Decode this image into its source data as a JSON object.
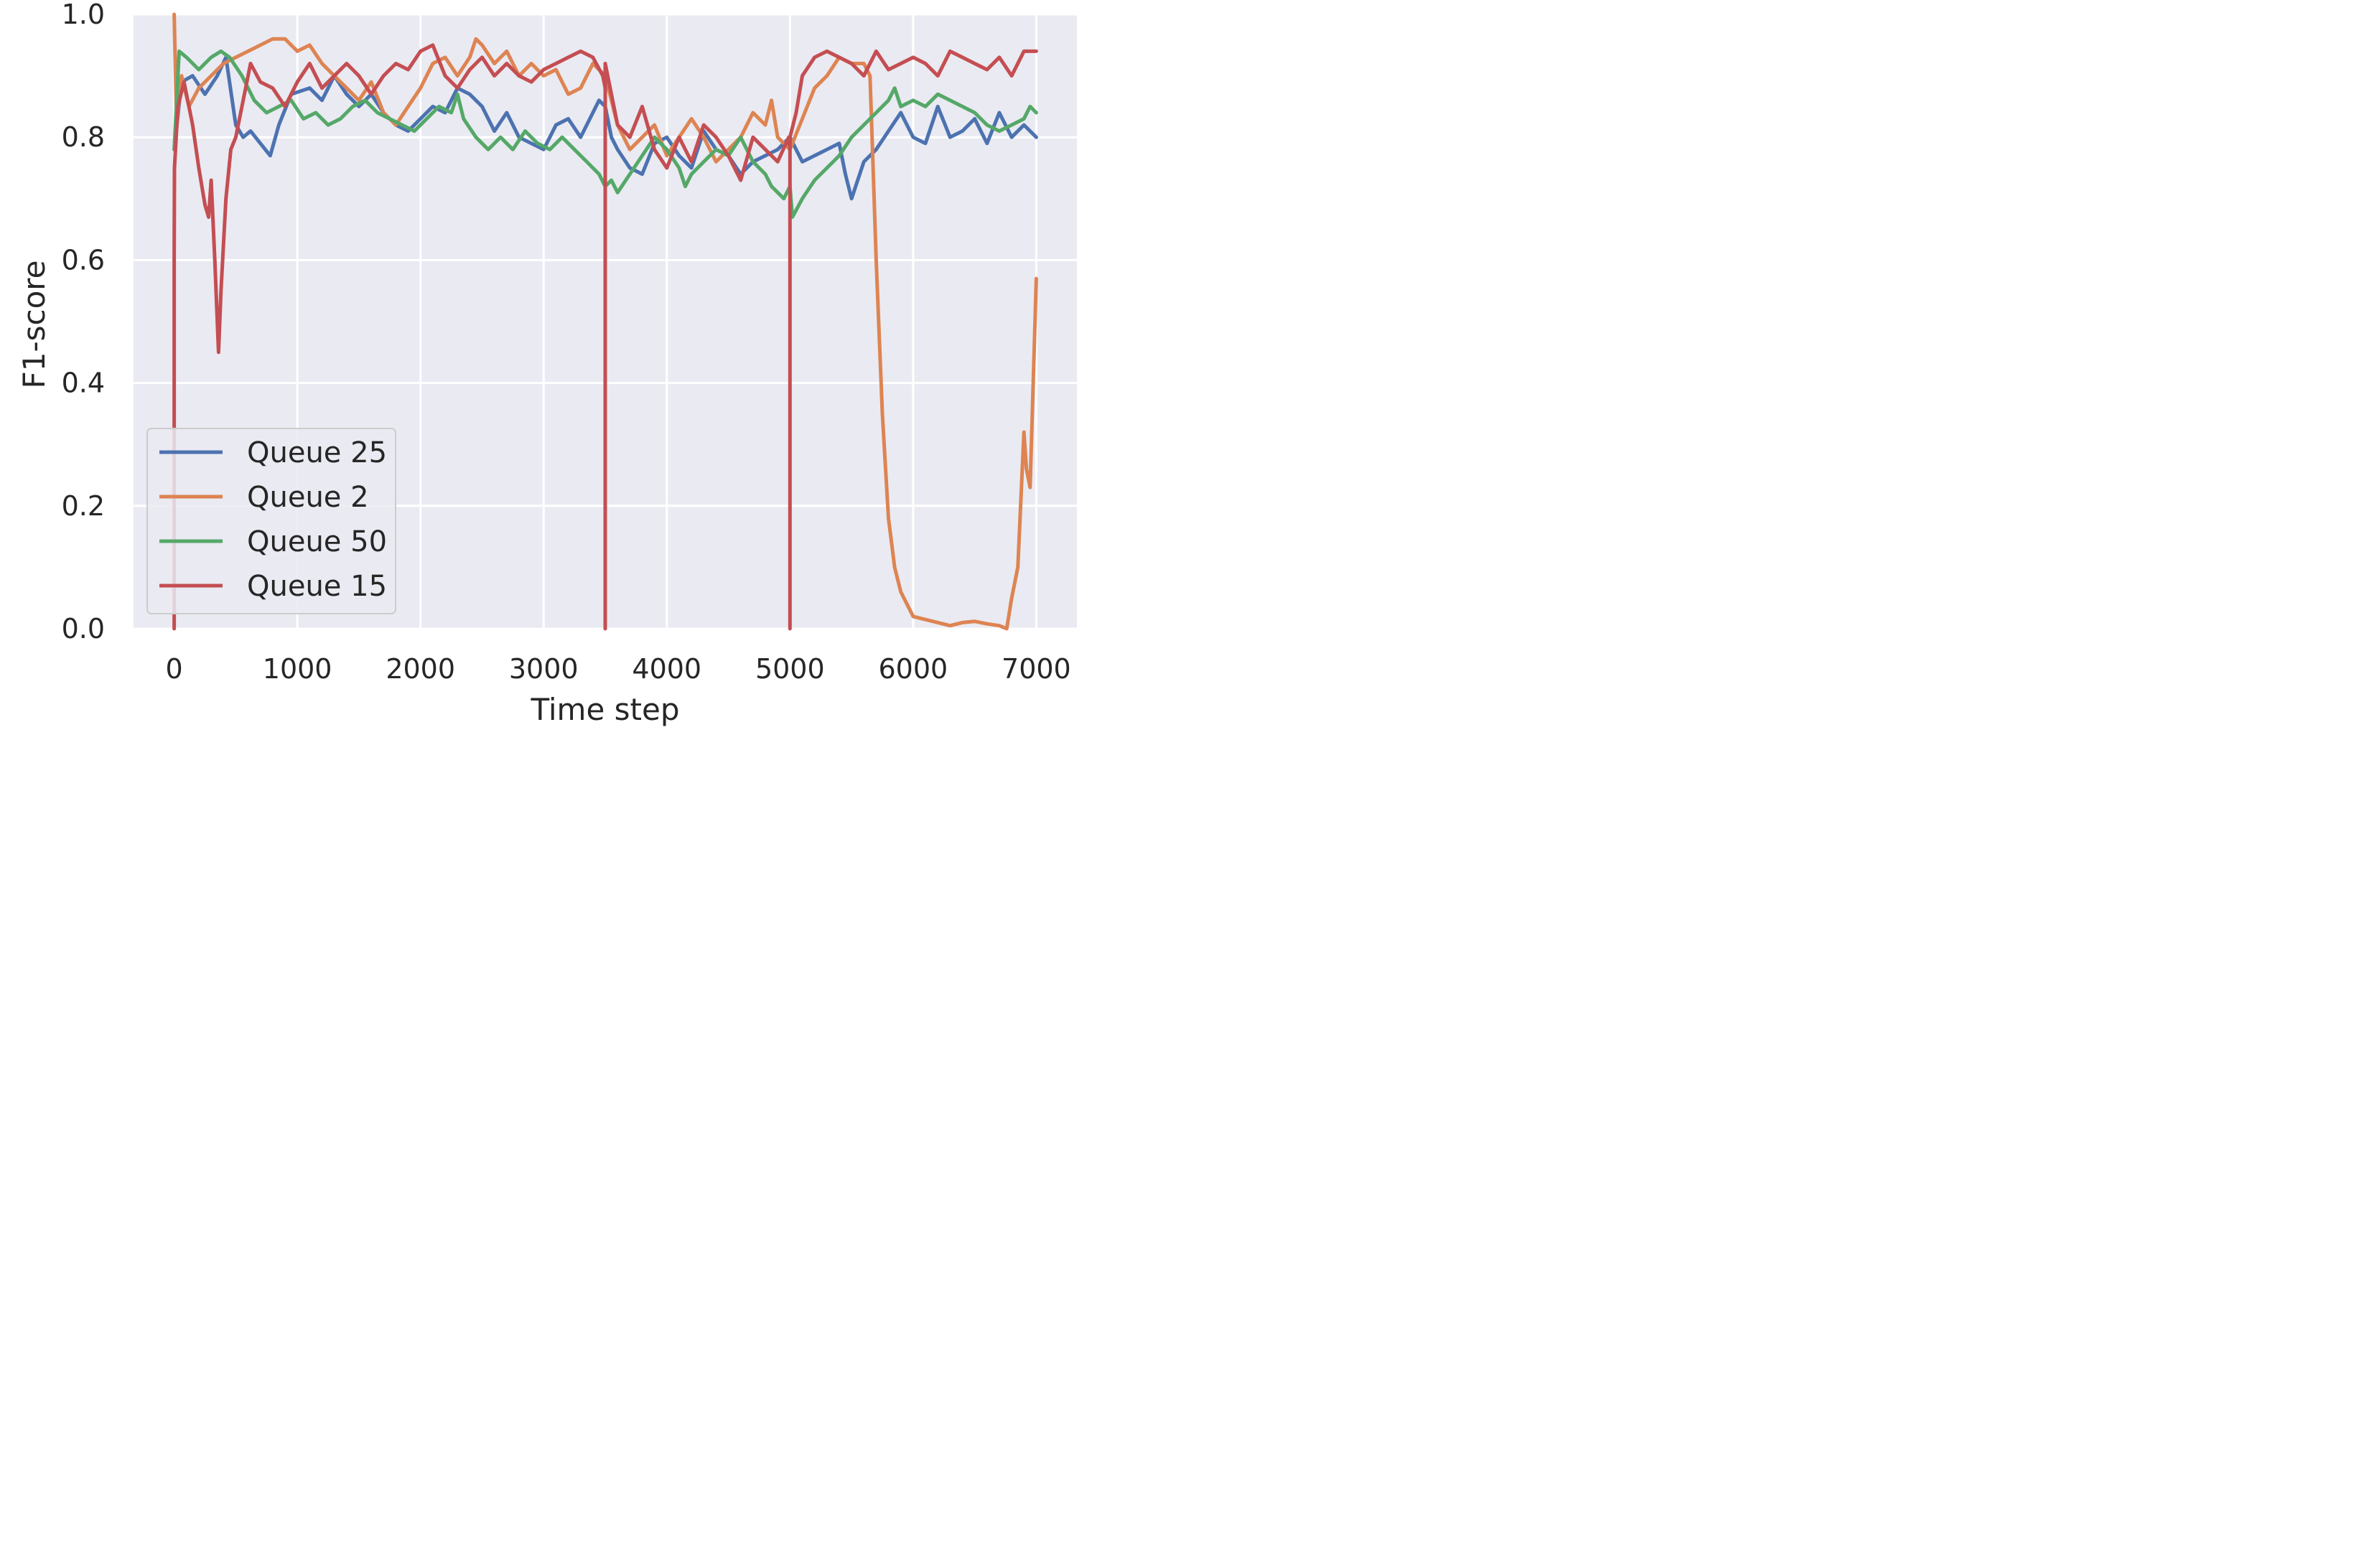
{
  "chart_data": {
    "type": "line",
    "title": "",
    "xlabel": "Time step",
    "ylabel": "F1-score",
    "xlim": [
      -330,
      7330
    ],
    "ylim": [
      0,
      1.0
    ],
    "xticks": [
      0,
      1000,
      2000,
      3000,
      4000,
      5000,
      6000,
      7000
    ],
    "xtick_labels": [
      "0",
      "1000",
      "2000",
      "3000",
      "4000",
      "5000",
      "6000",
      "7000"
    ],
    "yticks": [
      0,
      0.2,
      0.4,
      0.6,
      0.8,
      1.0
    ],
    "ytick_labels": [
      "0.0",
      "0.2",
      "0.4",
      "0.6",
      "0.8",
      "1.0"
    ],
    "grid": true,
    "background": "#eaeaf2",
    "legend_position": "lower-left",
    "series": [
      {
        "name": "Queue 25",
        "color": "#4c72b0",
        "x": [
          0,
          60,
          150,
          250,
          350,
          420,
          500,
          560,
          620,
          700,
          780,
          850,
          950,
          1100,
          1200,
          1300,
          1400,
          1500,
          1600,
          1700,
          1800,
          1900,
          2000,
          2100,
          2200,
          2300,
          2400,
          2500,
          2600,
          2700,
          2800,
          2900,
          3000,
          3100,
          3200,
          3300,
          3400,
          3450,
          3500,
          3550,
          3600,
          3700,
          3800,
          3900,
          4000,
          4100,
          4200,
          4300,
          4400,
          4500,
          4600,
          4700,
          4800,
          4900,
          5000,
          5100,
          5200,
          5300,
          5400,
          5450,
          5500,
          5600,
          5700,
          5800,
          5900,
          6000,
          6100,
          6200,
          6300,
          6400,
          6500,
          6600,
          6700,
          6800,
          6900,
          7000
        ],
        "y": [
          0.78,
          0.89,
          0.9,
          0.87,
          0.9,
          0.93,
          0.82,
          0.8,
          0.81,
          0.79,
          0.77,
          0.82,
          0.87,
          0.88,
          0.86,
          0.9,
          0.87,
          0.85,
          0.87,
          0.84,
          0.82,
          0.81,
          0.83,
          0.85,
          0.84,
          0.88,
          0.87,
          0.85,
          0.81,
          0.84,
          0.8,
          0.79,
          0.78,
          0.82,
          0.83,
          0.8,
          0.84,
          0.86,
          0.85,
          0.8,
          0.78,
          0.75,
          0.74,
          0.79,
          0.8,
          0.77,
          0.75,
          0.81,
          0.78,
          0.77,
          0.74,
          0.76,
          0.77,
          0.78,
          0.8,
          0.76,
          0.77,
          0.78,
          0.79,
          0.74,
          0.7,
          0.76,
          0.78,
          0.81,
          0.84,
          0.8,
          0.79,
          0.85,
          0.8,
          0.81,
          0.83,
          0.79,
          0.84,
          0.8,
          0.82,
          0.8
        ]
      },
      {
        "name": "Queue 2",
        "color": "#dd8452",
        "x": [
          0,
          20,
          60,
          120,
          200,
          300,
          400,
          500,
          600,
          700,
          800,
          900,
          1000,
          1100,
          1200,
          1300,
          1400,
          1500,
          1600,
          1700,
          1800,
          1900,
          2000,
          2100,
          2200,
          2300,
          2400,
          2450,
          2500,
          2600,
          2700,
          2800,
          2900,
          3000,
          3100,
          3200,
          3300,
          3400,
          3500,
          3550,
          3600,
          3700,
          3800,
          3900,
          4000,
          4100,
          4200,
          4300,
          4400,
          4500,
          4600,
          4700,
          4800,
          4850,
          4900,
          5000,
          5100,
          5200,
          5300,
          5400,
          5500,
          5600,
          5650,
          5700,
          5750,
          5800,
          5850,
          5900,
          5950,
          6000,
          6100,
          6200,
          6300,
          6400,
          6500,
          6600,
          6700,
          6760,
          6800,
          6850,
          6900,
          6920,
          6950,
          7000
        ],
        "y": [
          1.0,
          0.82,
          0.9,
          0.85,
          0.88,
          0.9,
          0.92,
          0.93,
          0.94,
          0.95,
          0.96,
          0.96,
          0.94,
          0.95,
          0.92,
          0.9,
          0.88,
          0.86,
          0.89,
          0.84,
          0.82,
          0.85,
          0.88,
          0.92,
          0.93,
          0.9,
          0.93,
          0.96,
          0.95,
          0.92,
          0.94,
          0.9,
          0.92,
          0.9,
          0.91,
          0.87,
          0.88,
          0.92,
          0.9,
          0.86,
          0.82,
          0.78,
          0.8,
          0.82,
          0.77,
          0.8,
          0.83,
          0.8,
          0.76,
          0.78,
          0.8,
          0.84,
          0.82,
          0.86,
          0.8,
          0.78,
          0.83,
          0.88,
          0.9,
          0.93,
          0.92,
          0.92,
          0.9,
          0.6,
          0.35,
          0.18,
          0.1,
          0.06,
          0.04,
          0.02,
          0.015,
          0.01,
          0.005,
          0.01,
          0.012,
          0.008,
          0.005,
          0.0,
          0.05,
          0.1,
          0.32,
          0.26,
          0.23,
          0.57
        ]
      },
      {
        "name": "Queue 50",
        "color": "#55a868",
        "x": [
          0,
          40,
          100,
          200,
          300,
          380,
          450,
          550,
          650,
          750,
          850,
          950,
          1050,
          1150,
          1250,
          1350,
          1450,
          1550,
          1650,
          1750,
          1850,
          1950,
          2050,
          2150,
          2250,
          2300,
          2350,
          2450,
          2550,
          2650,
          2750,
          2850,
          2950,
          3050,
          3150,
          3250,
          3350,
          3450,
          3500,
          3550,
          3600,
          3700,
          3800,
          3900,
          4000,
          4100,
          4150,
          4200,
          4300,
          4400,
          4500,
          4600,
          4700,
          4800,
          4850,
          4900,
          4950,
          5000,
          5020,
          5100,
          5200,
          5300,
          5400,
          5500,
          5600,
          5700,
          5800,
          5850,
          5900,
          6000,
          6100,
          6200,
          6300,
          6400,
          6500,
          6600,
          6700,
          6800,
          6900,
          6950,
          7000
        ],
        "y": [
          0.78,
          0.94,
          0.93,
          0.91,
          0.93,
          0.94,
          0.93,
          0.9,
          0.86,
          0.84,
          0.85,
          0.86,
          0.83,
          0.84,
          0.82,
          0.83,
          0.85,
          0.86,
          0.84,
          0.83,
          0.82,
          0.81,
          0.83,
          0.85,
          0.84,
          0.87,
          0.83,
          0.8,
          0.78,
          0.8,
          0.78,
          0.81,
          0.79,
          0.78,
          0.8,
          0.78,
          0.76,
          0.74,
          0.72,
          0.73,
          0.71,
          0.74,
          0.77,
          0.8,
          0.78,
          0.75,
          0.72,
          0.74,
          0.76,
          0.78,
          0.77,
          0.8,
          0.76,
          0.74,
          0.72,
          0.71,
          0.7,
          0.72,
          0.67,
          0.7,
          0.73,
          0.75,
          0.77,
          0.8,
          0.82,
          0.84,
          0.86,
          0.88,
          0.85,
          0.86,
          0.85,
          0.87,
          0.86,
          0.85,
          0.84,
          0.82,
          0.81,
          0.82,
          0.83,
          0.85,
          0.84
        ]
      },
      {
        "name": "Queue 15",
        "color": "#c44e52",
        "x": [
          0,
          0,
          2,
          30,
          80,
          150,
          200,
          250,
          280,
          300,
          330,
          360,
          380,
          420,
          460,
          500,
          560,
          620,
          700,
          800,
          900,
          1000,
          1100,
          1200,
          1300,
          1400,
          1500,
          1600,
          1700,
          1800,
          1900,
          2000,
          2100,
          2200,
          2300,
          2400,
          2500,
          2600,
          2700,
          2800,
          2900,
          3000,
          3100,
          3200,
          3300,
          3400,
          3480,
          3500,
          3500,
          3500,
          3500,
          3540,
          3600,
          3700,
          3800,
          3900,
          4000,
          4100,
          4200,
          4300,
          4400,
          4500,
          4600,
          4700,
          4800,
          4900,
          4990,
          5000,
          5000,
          5000,
          5000,
          5050,
          5100,
          5200,
          5300,
          5400,
          5500,
          5600,
          5700,
          5800,
          5900,
          6000,
          6100,
          6200,
          6300,
          6400,
          6500,
          6600,
          6700,
          6800,
          6900,
          7000
        ],
        "y": [
          0.0,
          0.6,
          0.75,
          0.85,
          0.89,
          0.82,
          0.75,
          0.69,
          0.67,
          0.73,
          0.6,
          0.45,
          0.55,
          0.7,
          0.78,
          0.8,
          0.86,
          0.92,
          0.89,
          0.88,
          0.85,
          0.89,
          0.92,
          0.88,
          0.9,
          0.92,
          0.9,
          0.87,
          0.9,
          0.92,
          0.91,
          0.94,
          0.95,
          0.9,
          0.88,
          0.91,
          0.93,
          0.9,
          0.92,
          0.9,
          0.89,
          0.91,
          0.92,
          0.93,
          0.94,
          0.93,
          0.9,
          0.88,
          0.0,
          0.0,
          0.92,
          0.88,
          0.82,
          0.8,
          0.85,
          0.78,
          0.75,
          0.8,
          0.76,
          0.82,
          0.8,
          0.77,
          0.73,
          0.8,
          0.78,
          0.76,
          0.8,
          0.78,
          0.0,
          0.0,
          0.8,
          0.84,
          0.9,
          0.93,
          0.94,
          0.93,
          0.92,
          0.9,
          0.94,
          0.91,
          0.92,
          0.93,
          0.92,
          0.9,
          0.94,
          0.93,
          0.92,
          0.91,
          0.93,
          0.9,
          0.94,
          0.94
        ]
      }
    ]
  }
}
